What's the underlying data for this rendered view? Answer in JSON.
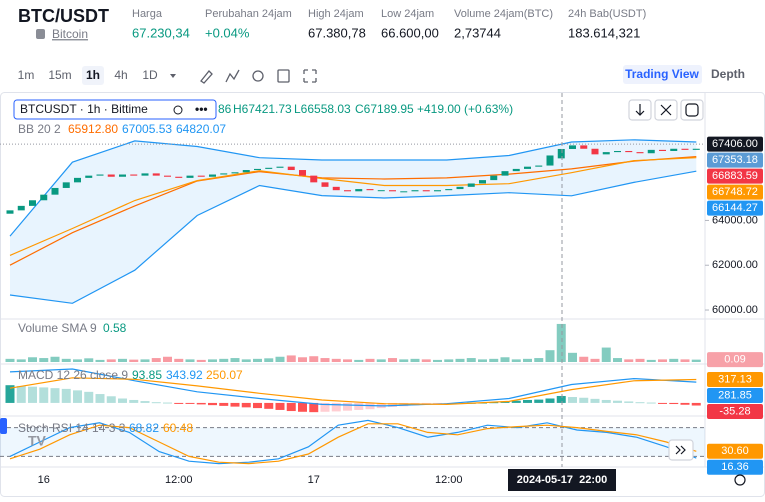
{
  "header": {
    "symbol": "BTC/USDT",
    "coin": "Bitcoin",
    "stats": [
      {
        "label": "Harga",
        "value": "67.230,34",
        "color": "#089981"
      },
      {
        "label": "Perubahan 24jam",
        "value": "+0.04%",
        "color": "#089981"
      },
      {
        "label": "High 24jam",
        "value": "67.380,78"
      },
      {
        "label": "Low 24jam",
        "value": "66.600,00"
      },
      {
        "label": "Volume 24jam(BTC)",
        "value": "2,73744"
      },
      {
        "label": "24h Bab(USDT)",
        "value": "183.614,321"
      }
    ]
  },
  "toolbar": {
    "intervals": [
      "1m",
      "15m",
      "1h",
      "4h",
      "1D"
    ],
    "active": "1h",
    "views": [
      "Trading View",
      "Depth"
    ]
  },
  "chart": {
    "legend": {
      "symbol": "BTCUSDT · 1h · Bittime",
      "open": "86",
      "high": "H67421.73",
      "low": "L66558.03",
      "close": "C67189.95",
      "change": "+419.00 (+0.63%)"
    },
    "up_color": "#089981",
    "down_color": "#f23645",
    "price": {
      "ylim": [
        59644,
        69689
      ],
      "yticks": [
        {
          "value": 60000,
          "label": "60000.00"
        },
        {
          "value": 62000,
          "label": "62000.00"
        },
        {
          "value": 64000,
          "label": "64000.00"
        }
      ],
      "open": [
        64300,
        64450,
        64650,
        64900,
        65150,
        65450,
        65700,
        65900,
        66000,
        66050,
        65950,
        66050,
        66000,
        66100,
        66000,
        65950,
        65900,
        66000,
        65950,
        66050,
        66100,
        66150,
        66250,
        66300,
        66350,
        66400,
        66250,
        66000,
        65700,
        65500,
        65350,
        65300,
        65400,
        65350,
        65350,
        65300,
        65300,
        65350,
        65300,
        65350,
        65400,
        65500,
        65650,
        65800,
        66000,
        66200,
        66300,
        66400,
        66450,
        66770.86,
        67189.95,
        67350,
        67200,
        66950,
        67050,
        67100,
        67050,
        67000,
        67150,
        67100,
        67200,
        67150
      ],
      "close": [
        64450,
        64650,
        64900,
        65150,
        65450,
        65700,
        65900,
        66000,
        66050,
        65950,
        66050,
        66000,
        66100,
        66000,
        65950,
        65900,
        66000,
        65950,
        66050,
        66100,
        66150,
        66250,
        66300,
        66350,
        66400,
        66250,
        66000,
        65700,
        65500,
        65350,
        65300,
        65400,
        65350,
        65350,
        65300,
        65300,
        65350,
        65300,
        65350,
        65400,
        65500,
        65650,
        65800,
        66000,
        66200,
        66300,
        66400,
        66450,
        66900,
        67189.95,
        67350,
        67200,
        66950,
        67050,
        67100,
        67050,
        67000,
        67150,
        67100,
        67200,
        67150,
        67200
      ],
      "bb": {
        "title": "BB 20 2",
        "basis_label": "65912.80",
        "upper_label": "67005.53",
        "lower_label": "64820.07",
        "basis_color": "#ff6d00",
        "band_color": "#2196f3",
        "upper": [
          63300,
          66600,
          67550,
          67300,
          66800,
          66700,
          66700,
          66700,
          66900,
          67500,
          67600,
          67500
        ],
        "basis": [
          62000,
          63450,
          64650,
          65760,
          66180,
          65900,
          65850,
          65900,
          66070,
          66300,
          66650,
          66850
        ],
        "lower": [
          60670,
          60300,
          61780,
          64220,
          65560,
          65110,
          65000,
          65110,
          65240,
          65100,
          65700,
          66200
        ]
      },
      "ma": {
        "color": "#ff9800",
        "values": [
          62440,
          63640,
          64890,
          65780,
          66220,
          65870,
          65560,
          65560,
          65640,
          66130,
          66670,
          66800
        ]
      },
      "labels": [
        {
          "value": 67353.18,
          "label": "67353.18",
          "color": "#5b9bd5"
        },
        {
          "value": 67406,
          "label": "67406.00",
          "color": "#131722"
        },
        {
          "value": 66883.59,
          "label": "66883.59",
          "color": "#f23645"
        },
        {
          "value": 66748.72,
          "label": "66748.72",
          "color": "#ff9800"
        },
        {
          "value": 66144.27,
          "label": "66144.27",
          "color": "#2196f3"
        }
      ]
    },
    "volume": {
      "title": "Volume SMA 9",
      "sma_label": "0.58",
      "ylim": [
        0,
        1.6
      ],
      "values": [
        0.12,
        0.1,
        0.18,
        0.15,
        0.2,
        0.12,
        0.1,
        0.14,
        0.08,
        0.1,
        0.12,
        0.09,
        0.1,
        0.15,
        0.2,
        0.12,
        0.1,
        0.08,
        0.1,
        0.12,
        0.15,
        0.1,
        0.12,
        0.14,
        0.2,
        0.25,
        0.18,
        0.22,
        0.15,
        0.12,
        0.1,
        0.08,
        0.12,
        0.1,
        0.15,
        0.1,
        0.12,
        0.1,
        0.08,
        0.1,
        0.12,
        0.15,
        0.1,
        0.12,
        0.18,
        0.1,
        0.12,
        0.15,
        0.45,
        1.45,
        0.35,
        0.2,
        0.12,
        0.55,
        0.15,
        0.1,
        0.12,
        0.08,
        0.1,
        0.12,
        0.1,
        0.09
      ],
      "labels": [
        {
          "value": 0.09,
          "label": "0.09",
          "color": "#f7a1a8"
        }
      ]
    },
    "macd": {
      "title": "MACD 12 26 close 9",
      "hist_label": "93.85",
      "macd_label": "343.92",
      "signal_label": "250.07",
      "ylim": [
        -150,
        500
      ],
      "macd_color": "#2196f3",
      "signal_color": "#ff9800",
      "hist": [
        240,
        230,
        220,
        210,
        200,
        190,
        170,
        150,
        120,
        90,
        60,
        40,
        25,
        10,
        5,
        -5,
        -10,
        -20,
        -30,
        -40,
        -50,
        -60,
        -70,
        -80,
        -95,
        -110,
        -120,
        -125,
        -120,
        -115,
        -105,
        -95,
        -85,
        -70,
        -55,
        -45,
        -35,
        -25,
        -15,
        -8,
        -4,
        2,
        5,
        10,
        20,
        30,
        40,
        45,
        60,
        93.85,
        80,
        70,
        55,
        40,
        30,
        20,
        10,
        5,
        -5,
        -15,
        -25,
        -35.28
      ],
      "macd": [
        420,
        460,
        300,
        150,
        60,
        -20,
        -40,
        -10,
        60,
        250,
        330,
        282
      ],
      "signal": [
        200,
        340,
        320,
        230,
        130,
        40,
        -10,
        -20,
        20,
        180,
        300,
        317
      ],
      "labels": [
        {
          "value": 317.13,
          "label": "317.13",
          "color": "#ff9800"
        },
        {
          "value": 281.85,
          "label": "281.85",
          "color": "#2196f3"
        },
        {
          "value": -35.28,
          "label": "-35.28",
          "color": "#f23645"
        }
      ]
    },
    "stoch": {
      "title": "Stoch RSI 14 14 3 3",
      "k_label": "68.82",
      "d_label": "60.48",
      "ylim": [
        0,
        100
      ],
      "bands": [
        80,
        20
      ],
      "k_color": "#2196f3",
      "d_color": "#ff9800",
      "k": [
        20,
        50,
        80,
        90,
        70,
        30,
        10,
        5,
        8,
        15,
        40,
        85,
        95,
        80,
        60,
        70,
        85,
        80,
        90,
        75,
        70,
        60,
        40,
        16.36
      ],
      "d": [
        15,
        35,
        65,
        85,
        80,
        50,
        20,
        8,
        5,
        10,
        25,
        60,
        88,
        88,
        70,
        65,
        78,
        82,
        85,
        80,
        72,
        65,
        50,
        30.6
      ],
      "labels": [
        {
          "value": 30.6,
          "label": "30.60",
          "color": "#ff9800"
        },
        {
          "value": 16.36,
          "label": "16.36",
          "color": "#2196f3"
        }
      ]
    },
    "time_labels": [
      null,
      null,
      null,
      "16",
      null,
      null,
      null,
      null,
      null,
      null,
      null,
      null,
      null,
      null,
      null,
      "12:00",
      null,
      null,
      null,
      null,
      null,
      null,
      null,
      null,
      null,
      null,
      null,
      "17",
      null,
      null,
      null,
      null,
      null,
      null,
      null,
      null,
      null,
      null,
      null,
      "12:00",
      null,
      null,
      null,
      null,
      null,
      null,
      null,
      null,
      null,
      null,
      null,
      null,
      null,
      null,
      null,
      null,
      null,
      null,
      null,
      null,
      null,
      null
    ],
    "crosshair_label": "2024-05-17  22:00"
  }
}
